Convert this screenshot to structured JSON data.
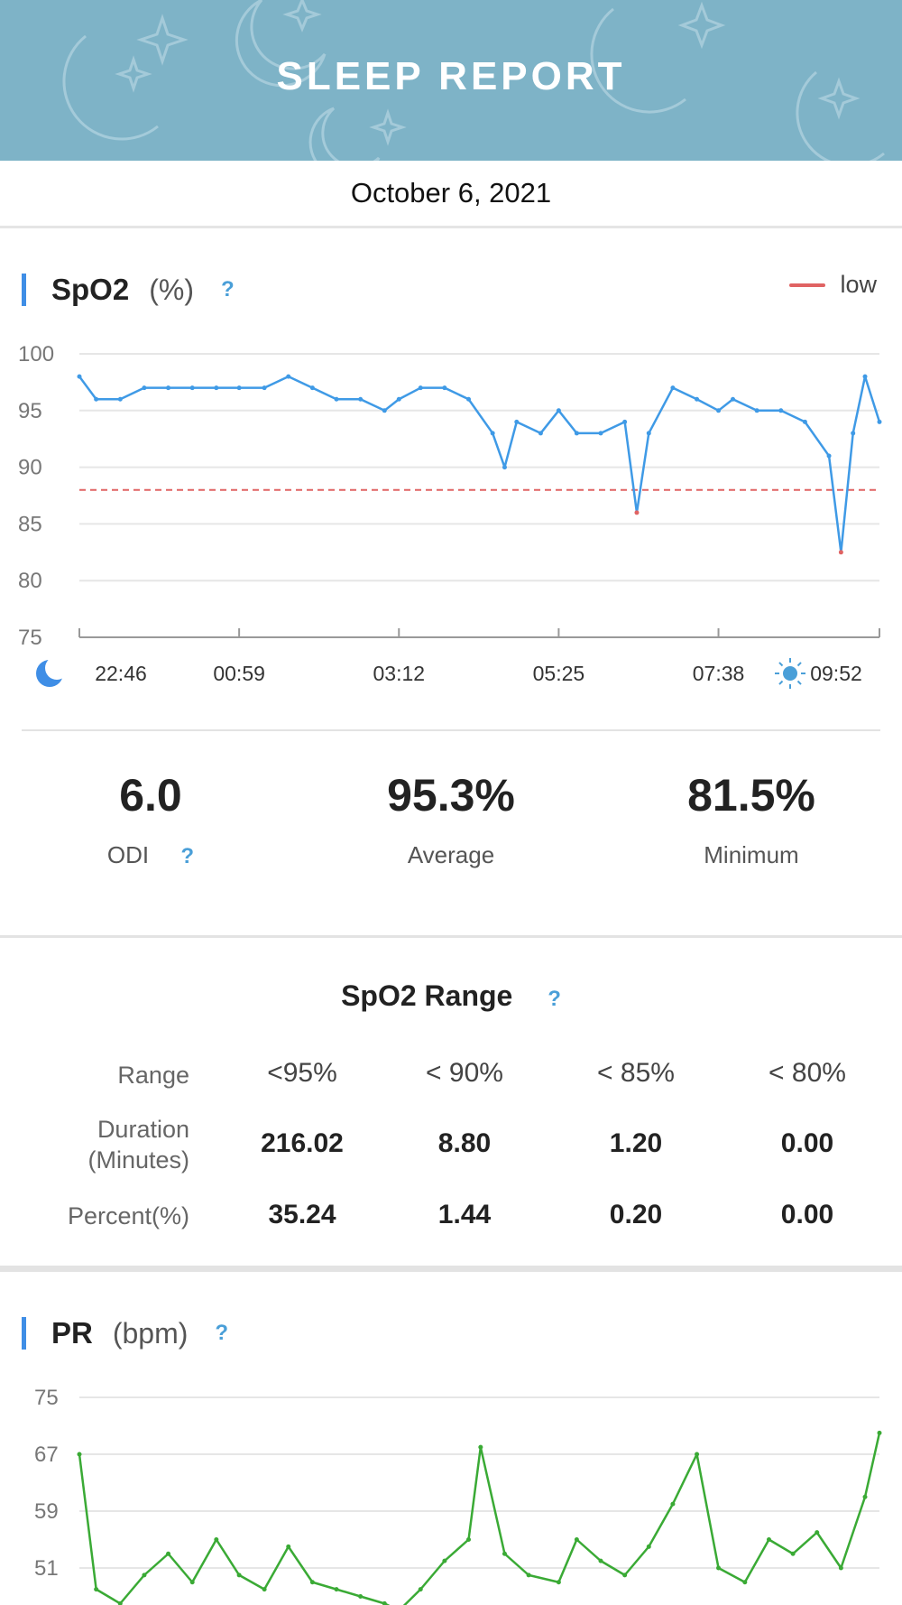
{
  "header": {
    "title": "SLEEP REPORT",
    "date": "October 6, 2021"
  },
  "spo2": {
    "title": "SpO2",
    "unit": "(%)",
    "help": "?",
    "legend_label": "low",
    "colors": {
      "line": "#3f9ae6",
      "low": "#e06363"
    },
    "stats": {
      "odi_value": "6.0",
      "odi_label": "ODI",
      "odi_help": "?",
      "avg_value": "95.3%",
      "avg_label": "Average",
      "min_value": "81.5%",
      "min_label": "Minimum"
    }
  },
  "range": {
    "title": "SpO2 Range",
    "help": "?",
    "row_range": "Range",
    "row_duration": "Duration\n(Minutes)",
    "row_percent": "Percent(%)",
    "columns": [
      "<95%",
      "< 90%",
      "< 85%",
      "< 80%"
    ],
    "duration": [
      "216.02",
      "8.80",
      "1.20",
      "0.00"
    ],
    "percent": [
      "35.24",
      "1.44",
      "0.20",
      "0.00"
    ]
  },
  "pr": {
    "title": "PR",
    "unit": "(bpm)",
    "help": "?",
    "colors": {
      "line": "#3aaa35"
    }
  },
  "chart_data": [
    {
      "type": "line",
      "title": "SpO2",
      "ylabel": "(%)",
      "ylim": [
        75,
        100
      ],
      "y_ticks": [
        "100",
        "95",
        "90",
        "85",
        "80",
        "75"
      ],
      "x_ticks": [
        "22:46",
        "00:59",
        "03:12",
        "05:25",
        "07:38",
        "09:52"
      ],
      "threshold": 88,
      "grid": true,
      "series": [
        {
          "name": "low",
          "x": [
            "22:46",
            "23:00",
            "23:20",
            "23:40",
            "00:00",
            "00:20",
            "00:40",
            "00:59",
            "01:20",
            "01:40",
            "02:00",
            "02:20",
            "02:40",
            "03:00",
            "03:12",
            "03:30",
            "03:50",
            "04:10",
            "04:30",
            "04:40",
            "04:50",
            "05:10",
            "05:25",
            "05:40",
            "06:00",
            "06:20",
            "06:30",
            "06:40",
            "07:00",
            "07:20",
            "07:38",
            "07:50",
            "08:10",
            "08:30",
            "08:50",
            "09:10",
            "09:20",
            "09:30",
            "09:40",
            "09:52"
          ],
          "values": [
            98,
            96,
            96,
            97,
            97,
            97,
            97,
            97,
            97,
            98,
            97,
            96,
            96,
            95,
            96,
            97,
            97,
            96,
            93,
            90,
            94,
            93,
            95,
            93,
            93,
            94,
            86,
            93,
            97,
            96,
            95,
            96,
            95,
            95,
            94,
            91,
            82.5,
            93,
            98,
            94
          ]
        }
      ]
    },
    {
      "type": "line",
      "title": "PR",
      "ylabel": "(bpm)",
      "ylim": [
        43,
        75
      ],
      "y_ticks": [
        "75",
        "67",
        "59",
        "51"
      ],
      "grid": true,
      "series": [
        {
          "x": [
            "22:46",
            "23:00",
            "23:20",
            "23:40",
            "00:00",
            "00:20",
            "00:40",
            "00:59",
            "01:20",
            "01:40",
            "02:00",
            "02:20",
            "02:40",
            "03:00",
            "03:12",
            "03:30",
            "03:50",
            "04:10",
            "04:20",
            "04:40",
            "05:00",
            "05:25",
            "05:40",
            "06:00",
            "06:20",
            "06:40",
            "07:00",
            "07:20",
            "07:38",
            "08:00",
            "08:20",
            "08:40",
            "09:00",
            "09:20",
            "09:40",
            "09:52"
          ],
          "values": [
            67,
            48,
            46,
            50,
            53,
            49,
            55,
            50,
            48,
            54,
            49,
            48,
            47,
            46,
            45,
            48,
            52,
            55,
            68,
            53,
            50,
            49,
            55,
            52,
            50,
            54,
            60,
            67,
            51,
            49,
            55,
            53,
            56,
            51,
            61,
            70
          ]
        }
      ]
    }
  ]
}
